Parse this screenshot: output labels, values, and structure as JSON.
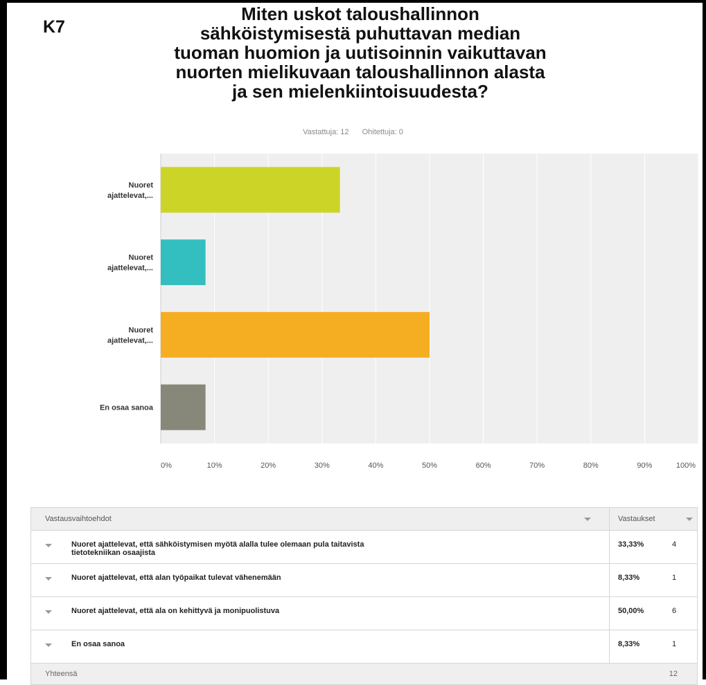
{
  "label": "K7",
  "title": "Miten uskot taloushallinnon sähköistymisestä puhuttavan median tuoman huomion ja uutisoinnin vaikuttavan nuorten mielikuvaan taloushallinnon alasta ja sen mielenkiintoisuudesta?",
  "title_lines": [
    "Miten uskot taloushallinnon",
    "sähköistymisestä puhuttavan median",
    "tuoman huomion ja uutisoinnin vaikuttavan",
    "nuorten mielikuvaan taloushallinnon alasta",
    "ja sen mielenkiintoisuudesta?"
  ],
  "stats": {
    "answered": "Vastattuja: 12",
    "skipped": "Ohitettuja: 0"
  },
  "chart_data": {
    "type": "bar",
    "orientation": "horizontal",
    "categories": [
      "Nuoret ajattelevat,...",
      "Nuoret ajattelevat,...",
      "Nuoret ajattelevat,...",
      "En osaa sanoa"
    ],
    "category_label_lines": [
      [
        "Nuoret",
        "ajattelevat,..."
      ],
      [
        "Nuoret",
        "ajattelevat,..."
      ],
      [
        "Nuoret",
        "ajattelevat,..."
      ],
      [
        "En osaa sanoa"
      ]
    ],
    "values": [
      33.33,
      8.33,
      50.0,
      8.33
    ],
    "colors": [
      "#cdd428",
      "#33bfbf",
      "#f5ad22",
      "#88887a"
    ],
    "xlim": [
      0,
      100
    ],
    "xticks": [
      "0%",
      "10%",
      "20%",
      "30%",
      "40%",
      "50%",
      "60%",
      "70%",
      "80%",
      "90%",
      "100%"
    ],
    "grid": true,
    "plot_background": "#efefef"
  },
  "table": {
    "header": {
      "choices": "Vastausvaihtoehdot",
      "responses": "Vastaukset"
    },
    "rows": [
      {
        "line1": "Nuoret ajattelevat, että sähköistymisen myötä alalla tulee olemaan pula taitavista",
        "line2": "tietotekniikan osaajista",
        "percent": "33,33%",
        "count": "4"
      },
      {
        "line1": "Nuoret ajattelevat, että alan työpaikat tulevat vähenemään",
        "line2": "",
        "percent": "8,33%",
        "count": "1"
      },
      {
        "line1": "Nuoret ajattelevat, että ala on kehittyvä ja monipuolistuva",
        "line2": "",
        "percent": "50,00%",
        "count": "6"
      },
      {
        "line1": "En osaa sanoa",
        "line2": "",
        "percent": "8,33%",
        "count": "1"
      }
    ],
    "total": {
      "label": "Yhteensä",
      "count": "12"
    }
  }
}
